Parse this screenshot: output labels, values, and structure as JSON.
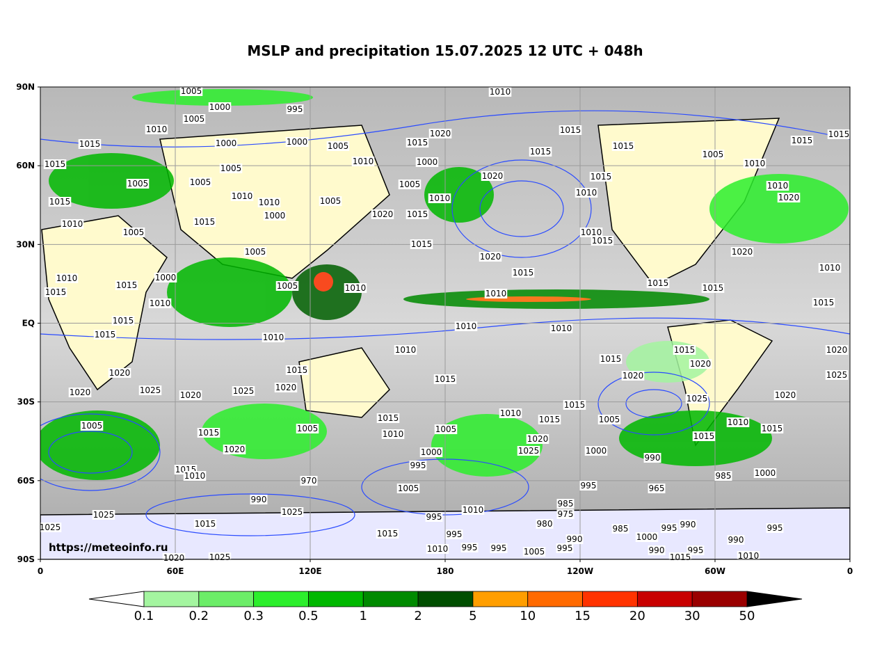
{
  "chart_data": {
    "type": "map",
    "title": "MSLP and precipitation 15.07.2025 12 UTC + 048h",
    "watermark": "https://meteoinfo.ru",
    "xlim": [
      0,
      360
    ],
    "xticks": [
      0,
      {
        "value": 60,
        "label": "60E"
      },
      {
        "value": 120,
        "label": "120E"
      },
      180,
      {
        "value": 240,
        "label": "120W"
      },
      {
        "value": 300,
        "label": "60W"
      },
      {
        "value": 360,
        "label": "0"
      }
    ],
    "ylim": [
      -90,
      90
    ],
    "yticks": [
      {
        "value": 90,
        "label": "90N"
      },
      {
        "value": 60,
        "label": "60N"
      },
      {
        "value": 30,
        "label": "30N"
      },
      {
        "value": 0,
        "label": "EQ"
      },
      {
        "value": -30,
        "label": "30S"
      },
      {
        "value": -60,
        "label": "60S"
      },
      {
        "value": -90,
        "label": "90S"
      }
    ],
    "grid": true,
    "colorbar": {
      "levels": [
        0.1,
        0.2,
        0.3,
        0.5,
        1,
        2,
        5,
        10,
        15,
        20,
        30,
        50
      ],
      "colors": [
        "#a4f5a0",
        "#6ced68",
        "#2cee2c",
        "#00b800",
        "#008a00",
        "#004e00",
        "#ff9e00",
        "#ff6a00",
        "#ff3300",
        "#c80000",
        "#9a0000"
      ],
      "under_color": "#ffffff",
      "over_color": "#000000"
    },
    "isobar_labels": [
      "1005",
      "1010",
      "1000",
      "995",
      "1005",
      "1010",
      "1020",
      "1015",
      "1015",
      "1015",
      "1000",
      "1000",
      "1005",
      "1015",
      "1015",
      "1015",
      "1005",
      "1015",
      "1015",
      "1010",
      "1000",
      "1010",
      "1005",
      "1020",
      "1015",
      "1005",
      "1005",
      "1005",
      "1010",
      "1010",
      "1010",
      "1010",
      "1010",
      "1020",
      "1015",
      "1005",
      "1020",
      "1015",
      "1000",
      "1015",
      "1010",
      "1005",
      "1010",
      "1015",
      "1015",
      "1005",
      "1020",
      "1020",
      "1015",
      "1010",
      "1000",
      "1010",
      "1015",
      "1005",
      "1010",
      "1010",
      "1015",
      "1015",
      "1015",
      "1010",
      "1015",
      "1015",
      "1010",
      "1010",
      "1010",
      "1015",
      "1010",
      "1015",
      "1015",
      "1020",
      "1015",
      "1020",
      "1020",
      "1015",
      "1020",
      "1025",
      "1020",
      "1025",
      "1020",
      "1025",
      "1020",
      "1025",
      "1020",
      "1015",
      "1015",
      "1005",
      "1010",
      "1015",
      "1005",
      "1010",
      "1015",
      "1015",
      "1005",
      "1005",
      "1010",
      "1020",
      "1020",
      "1025",
      "1000",
      "1000",
      "1015",
      "995",
      "990",
      "1015",
      "1010",
      "1000",
      "985",
      "970",
      "995",
      "965",
      "1005",
      "990",
      "1025",
      "1010",
      "985",
      "975",
      "995",
      "980",
      "1015",
      "1025",
      "1025",
      "985",
      "995",
      "990",
      "1000",
      "995",
      "995",
      "990",
      "990",
      "1010",
      "995",
      "995",
      "995",
      "990",
      "995",
      "1015",
      "1005",
      "1020",
      "1025",
      "1015",
      "1010"
    ]
  }
}
